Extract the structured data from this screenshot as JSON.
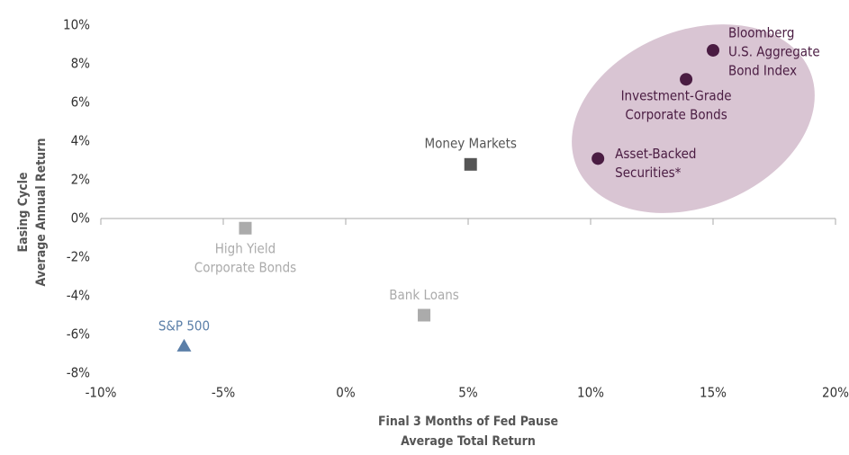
{
  "chart_data": {
    "type": "scatter",
    "xlabel": [
      "Final 3 Months of Fed Pause",
      "Average Total Return"
    ],
    "ylabel": [
      "Easing Cycle",
      "Average Annual Return"
    ],
    "xlim": [
      -10,
      20
    ],
    "xticks": [
      {
        "value": -10,
        "label": "-10%"
      },
      {
        "value": -5,
        "label": "-5%"
      },
      {
        "value": 0,
        "label": "0%"
      },
      {
        "value": 5,
        "label": "5%"
      },
      {
        "value": 10,
        "label": "10%"
      },
      {
        "value": 15,
        "label": "15%"
      },
      {
        "value": 20,
        "label": "20%"
      }
    ],
    "ylim": [
      -8,
      10
    ],
    "yticks": [
      {
        "value": -8,
        "label": "-8%"
      },
      {
        "value": -6,
        "label": "-6%"
      },
      {
        "value": -4,
        "label": "-4%"
      },
      {
        "value": -2,
        "label": "-2%"
      },
      {
        "value": 0,
        "label": "0%"
      },
      {
        "value": 2,
        "label": "2%"
      },
      {
        "value": 4,
        "label": "4%"
      },
      {
        "value": 6,
        "label": "6%"
      },
      {
        "value": 8,
        "label": "8%"
      },
      {
        "value": 10,
        "label": "10%"
      }
    ],
    "points": [
      {
        "label": [
          "Bloomberg",
          "U.S. Aggregate",
          "Bond Index"
        ],
        "x": 15.0,
        "y": 8.7,
        "color": "#4a1c42",
        "marker": "circle"
      },
      {
        "label": [
          "Investment-Grade",
          "Corporate Bonds"
        ],
        "x": 13.9,
        "y": 7.2,
        "color": "#4a1c42",
        "marker": "circle"
      },
      {
        "label": [
          "Asset-Backed",
          "Securities*"
        ],
        "x": 10.3,
        "y": 3.1,
        "color": "#4a1c42",
        "marker": "circle"
      },
      {
        "label": [
          "Money Markets"
        ],
        "x": 5.1,
        "y": 2.8,
        "color": "#555555",
        "marker": "square"
      },
      {
        "label": [
          "High Yield",
          "Corporate Bonds"
        ],
        "x": -4.1,
        "y": -0.5,
        "color": "#ababab",
        "marker": "square"
      },
      {
        "label": [
          "Bank Loans"
        ],
        "x": 3.2,
        "y": -5.0,
        "color": "#ababab",
        "marker": "square"
      },
      {
        "label": [
          "S&P 500"
        ],
        "x": -6.6,
        "y": -6.6,
        "color": "#5b7fa8",
        "marker": "triangle"
      }
    ]
  }
}
